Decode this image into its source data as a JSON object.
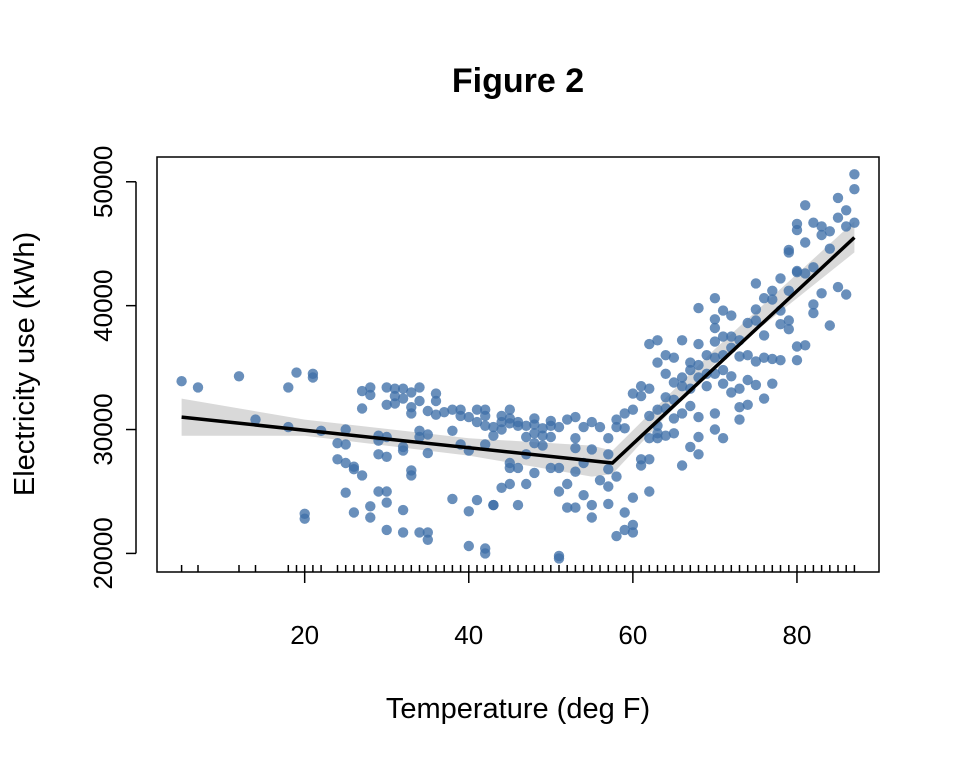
{
  "chart_data": {
    "type": "scatter",
    "title": "Figure 2",
    "xlabel": "Temperature (deg F)",
    "ylabel": "Electricity use (kWh)",
    "xlim": [
      2,
      90
    ],
    "ylim": [
      18500,
      52000
    ],
    "x_ticks": [
      20,
      40,
      60,
      80
    ],
    "y_ticks": [
      20000,
      30000,
      40000,
      50000
    ],
    "rug": true,
    "colors": {
      "points": "#3f6fa8",
      "fit": "#000000",
      "band": "#d9d9d9"
    },
    "fit_line": {
      "breakpoint": 57.5,
      "points": [
        [
          5,
          31000
        ],
        [
          57.5,
          27300
        ],
        [
          87,
          45500
        ]
      ]
    },
    "confidence_band": {
      "upper": [
        [
          5,
          32500
        ],
        [
          20,
          30800
        ],
        [
          40,
          29300
        ],
        [
          55,
          28700
        ],
        [
          57.5,
          28300
        ],
        [
          70,
          36500
        ],
        [
          87,
          46800
        ]
      ],
      "lower": [
        [
          87,
          44300
        ],
        [
          70,
          35300
        ],
        [
          57.5,
          26400
        ],
        [
          55,
          26200
        ],
        [
          40,
          27900
        ],
        [
          20,
          29500
        ],
        [
          5,
          29500
        ]
      ]
    },
    "points": [
      [
        5,
        33900
      ],
      [
        7,
        33400
      ],
      [
        12,
        34300
      ],
      [
        14,
        30800
      ],
      [
        18,
        33400
      ],
      [
        18,
        30200
      ],
      [
        19,
        34600
      ],
      [
        20,
        23200
      ],
      [
        20,
        22800
      ],
      [
        21,
        34500
      ],
      [
        21,
        34200
      ],
      [
        22,
        29900
      ],
      [
        24,
        27600
      ],
      [
        24,
        28900
      ],
      [
        25,
        27300
      ],
      [
        25,
        24900
      ],
      [
        25,
        30000
      ],
      [
        25,
        28800
      ],
      [
        26,
        26800
      ],
      [
        26,
        27000
      ],
      [
        26,
        23300
      ],
      [
        27,
        26300
      ],
      [
        27,
        33100
      ],
      [
        27,
        31700
      ],
      [
        28,
        33400
      ],
      [
        28,
        32800
      ],
      [
        28,
        23800
      ],
      [
        28,
        22900
      ],
      [
        29,
        29500
      ],
      [
        29,
        29100
      ],
      [
        29,
        28000
      ],
      [
        29,
        25000
      ],
      [
        30,
        33400
      ],
      [
        30,
        32000
      ],
      [
        30,
        29400
      ],
      [
        30,
        27800
      ],
      [
        30,
        24100
      ],
      [
        30,
        21900
      ],
      [
        30,
        25000
      ],
      [
        31,
        33300
      ],
      [
        31,
        32700
      ],
      [
        31,
        32100
      ],
      [
        32,
        33300
      ],
      [
        32,
        32500
      ],
      [
        32,
        28600
      ],
      [
        32,
        28300
      ],
      [
        32,
        21700
      ],
      [
        32,
        23500
      ],
      [
        33,
        33000
      ],
      [
        33,
        31800
      ],
      [
        33,
        31300
      ],
      [
        33,
        26700
      ],
      [
        33,
        26300
      ],
      [
        34,
        33400
      ],
      [
        34,
        32300
      ],
      [
        34,
        29900
      ],
      [
        34,
        29400
      ],
      [
        34,
        21700
      ],
      [
        35,
        29600
      ],
      [
        35,
        28100
      ],
      [
        35,
        31500
      ],
      [
        35,
        21700
      ],
      [
        35,
        21100
      ],
      [
        36,
        32900
      ],
      [
        36,
        32300
      ],
      [
        36,
        31200
      ],
      [
        37,
        31400
      ],
      [
        38,
        31600
      ],
      [
        38,
        29900
      ],
      [
        38,
        24400
      ],
      [
        39,
        31600
      ],
      [
        39,
        31100
      ],
      [
        39,
        28800
      ],
      [
        40,
        31000
      ],
      [
        40,
        28300
      ],
      [
        40,
        23400
      ],
      [
        40,
        20600
      ],
      [
        41,
        31600
      ],
      [
        41,
        30600
      ],
      [
        41,
        24300
      ],
      [
        42,
        31600
      ],
      [
        42,
        31100
      ],
      [
        42,
        30300
      ],
      [
        42,
        28800
      ],
      [
        42,
        20400
      ],
      [
        42,
        20000
      ],
      [
        43,
        30200
      ],
      [
        43,
        29500
      ],
      [
        43,
        23900
      ],
      [
        43,
        23900
      ],
      [
        44,
        31100
      ],
      [
        44,
        30600
      ],
      [
        44,
        30000
      ],
      [
        44,
        25300
      ],
      [
        45,
        31600
      ],
      [
        45,
        30900
      ],
      [
        45,
        30500
      ],
      [
        45,
        27300
      ],
      [
        45,
        26900
      ],
      [
        45,
        25600
      ],
      [
        46,
        30600
      ],
      [
        46,
        30300
      ],
      [
        46,
        26900
      ],
      [
        46,
        23900
      ],
      [
        47,
        30300
      ],
      [
        47,
        29400
      ],
      [
        47,
        28000
      ],
      [
        47,
        25600
      ],
      [
        48,
        30900
      ],
      [
        48,
        30400
      ],
      [
        48,
        29700
      ],
      [
        48,
        28900
      ],
      [
        48,
        26500
      ],
      [
        49,
        30100
      ],
      [
        49,
        29500
      ],
      [
        49,
        28700
      ],
      [
        50,
        30700
      ],
      [
        50,
        30300
      ],
      [
        50,
        29400
      ],
      [
        50,
        26900
      ],
      [
        51,
        30200
      ],
      [
        51,
        26900
      ],
      [
        51,
        25000
      ],
      [
        51,
        19800
      ],
      [
        51,
        19600
      ],
      [
        52,
        30800
      ],
      [
        52,
        25600
      ],
      [
        52,
        23700
      ],
      [
        53,
        31000
      ],
      [
        53,
        29300
      ],
      [
        53,
        28500
      ],
      [
        53,
        26600
      ],
      [
        53,
        23700
      ],
      [
        54,
        30200
      ],
      [
        54,
        27300
      ],
      [
        54,
        24700
      ],
      [
        55,
        30600
      ],
      [
        55,
        28400
      ],
      [
        55,
        22900
      ],
      [
        55,
        23900
      ],
      [
        56,
        30200
      ],
      [
        56,
        25900
      ],
      [
        57,
        29300
      ],
      [
        57,
        28000
      ],
      [
        57,
        26800
      ],
      [
        57,
        25400
      ],
      [
        57,
        24000
      ],
      [
        58,
        30800
      ],
      [
        58,
        30200
      ],
      [
        58,
        26200
      ],
      [
        58,
        21400
      ],
      [
        59,
        31300
      ],
      [
        59,
        30100
      ],
      [
        59,
        23300
      ],
      [
        59,
        21900
      ],
      [
        60,
        32900
      ],
      [
        60,
        31600
      ],
      [
        60,
        24500
      ],
      [
        60,
        22300
      ],
      [
        60,
        21700
      ],
      [
        61,
        33500
      ],
      [
        61,
        32700
      ],
      [
        61,
        27600
      ],
      [
        61,
        27100
      ],
      [
        62,
        36900
      ],
      [
        62,
        33300
      ],
      [
        62,
        31100
      ],
      [
        62,
        29300
      ],
      [
        62,
        27600
      ],
      [
        62,
        25000
      ],
      [
        63,
        37200
      ],
      [
        63,
        35400
      ],
      [
        63,
        31600
      ],
      [
        63,
        30300
      ],
      [
        63,
        29700
      ],
      [
        63,
        29300
      ],
      [
        64,
        36000
      ],
      [
        64,
        34500
      ],
      [
        64,
        32600
      ],
      [
        64,
        31700
      ],
      [
        64,
        29500
      ],
      [
        65,
        35800
      ],
      [
        65,
        33800
      ],
      [
        65,
        32400
      ],
      [
        65,
        30900
      ],
      [
        65,
        29700
      ],
      [
        66,
        37200
      ],
      [
        66,
        34200
      ],
      [
        66,
        33500
      ],
      [
        66,
        31300
      ],
      [
        66,
        27100
      ],
      [
        67,
        35400
      ],
      [
        67,
        34800
      ],
      [
        67,
        33300
      ],
      [
        67,
        31900
      ],
      [
        67,
        28600
      ],
      [
        68,
        39800
      ],
      [
        68,
        36900
      ],
      [
        68,
        35200
      ],
      [
        68,
        34200
      ],
      [
        68,
        31000
      ],
      [
        68,
        29400
      ],
      [
        68,
        28000
      ],
      [
        69,
        36000
      ],
      [
        69,
        34500
      ],
      [
        69,
        33500
      ],
      [
        70,
        40600
      ],
      [
        70,
        38900
      ],
      [
        70,
        38200
      ],
      [
        70,
        37100
      ],
      [
        70,
        35800
      ],
      [
        70,
        34500
      ],
      [
        70,
        31300
      ],
      [
        70,
        30000
      ],
      [
        71,
        39600
      ],
      [
        71,
        37500
      ],
      [
        71,
        36000
      ],
      [
        71,
        34800
      ],
      [
        71,
        33700
      ],
      [
        71,
        29300
      ],
      [
        72,
        39200
      ],
      [
        72,
        37500
      ],
      [
        72,
        36600
      ],
      [
        72,
        34300
      ],
      [
        72,
        33000
      ],
      [
        73,
        37200
      ],
      [
        73,
        35900
      ],
      [
        73,
        33300
      ],
      [
        73,
        31800
      ],
      [
        73,
        30800
      ],
      [
        74,
        38600
      ],
      [
        74,
        36000
      ],
      [
        74,
        34000
      ],
      [
        74,
        32000
      ],
      [
        75,
        41800
      ],
      [
        75,
        39700
      ],
      [
        75,
        38800
      ],
      [
        75,
        35500
      ],
      [
        75,
        33600
      ],
      [
        76,
        40600
      ],
      [
        76,
        37600
      ],
      [
        76,
        35800
      ],
      [
        76,
        32500
      ],
      [
        77,
        41200
      ],
      [
        77,
        40500
      ],
      [
        77,
        35700
      ],
      [
        77,
        33700
      ],
      [
        78,
        42200
      ],
      [
        78,
        39600
      ],
      [
        78,
        38500
      ],
      [
        78,
        35600
      ],
      [
        79,
        44500
      ],
      [
        79,
        44300
      ],
      [
        79,
        41200
      ],
      [
        79,
        38800
      ],
      [
        79,
        38100
      ],
      [
        80,
        46600
      ],
      [
        80,
        46100
      ],
      [
        80,
        42800
      ],
      [
        80,
        42700
      ],
      [
        80,
        36700
      ],
      [
        80,
        35600
      ],
      [
        81,
        48100
      ],
      [
        81,
        45100
      ],
      [
        81,
        42600
      ],
      [
        81,
        36800
      ],
      [
        82,
        46700
      ],
      [
        82,
        43100
      ],
      [
        82,
        40100
      ],
      [
        82,
        39400
      ],
      [
        83,
        46400
      ],
      [
        83,
        45700
      ],
      [
        83,
        41000
      ],
      [
        84,
        46000
      ],
      [
        84,
        44600
      ],
      [
        84,
        38400
      ],
      [
        85,
        48700
      ],
      [
        85,
        47100
      ],
      [
        85,
        41500
      ],
      [
        86,
        47700
      ],
      [
        86,
        46400
      ],
      [
        86,
        40900
      ],
      [
        87,
        50600
      ],
      [
        87,
        49400
      ],
      [
        87,
        46700
      ]
    ]
  }
}
